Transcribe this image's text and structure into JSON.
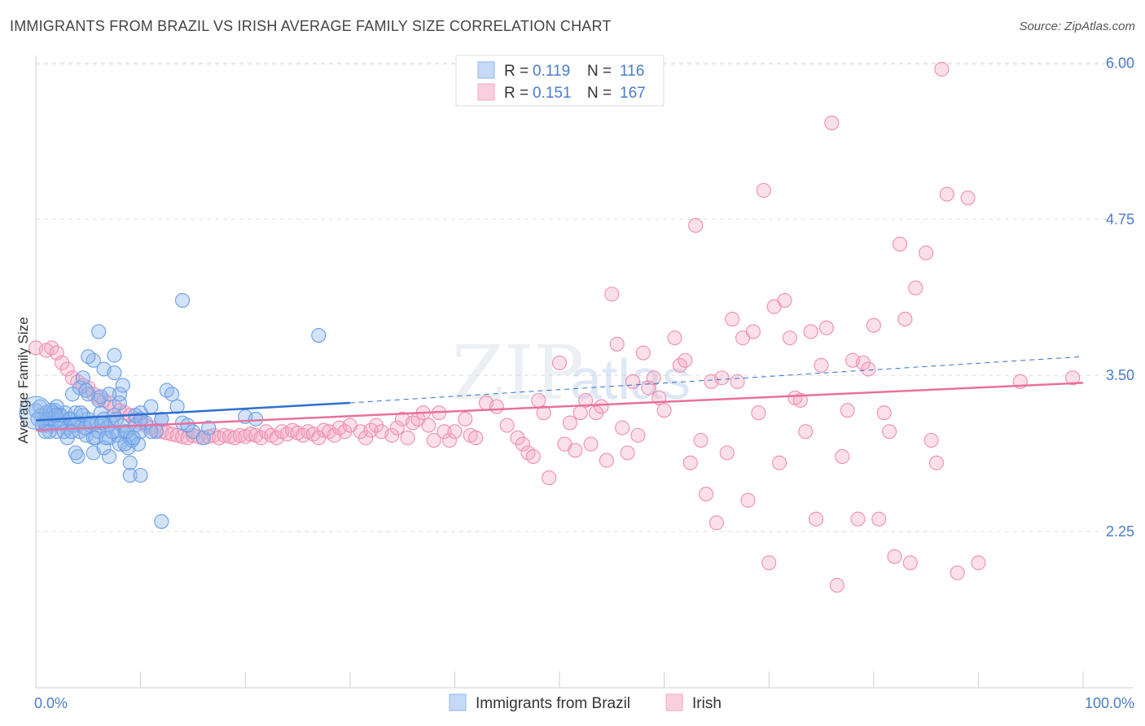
{
  "header": {
    "title": "IMMIGRANTS FROM BRAZIL VS IRISH AVERAGE FAMILY SIZE CORRELATION CHART",
    "source": "Source: ZipAtlas.com"
  },
  "watermark": {
    "zip": "ZIP",
    "atlas": "atlas"
  },
  "legend": {
    "r_label": "R =",
    "n_label": "N =",
    "series": [
      {
        "name": "Immigrants from Brazil",
        "r": "0.119",
        "n": "116",
        "color": "#8fb6ea"
      },
      {
        "name": "Irish",
        "r": "0.151",
        "n": "167",
        "color": "#f4a6c0"
      }
    ]
  },
  "chart_data": {
    "type": "scatter",
    "title": "IMMIGRANTS FROM BRAZIL VS IRISH AVERAGE FAMILY SIZE CORRELATION CHART",
    "xlabel": "",
    "ylabel": "Average Family Size",
    "xlim": [
      0,
      100
    ],
    "ylim": [
      1.0,
      6.1
    ],
    "x_tick_labels": [
      "0.0%",
      "100.0%"
    ],
    "y_ticks": [
      2.25,
      3.5,
      4.75,
      6.0
    ],
    "y_tick_labels": [
      "2.25",
      "3.50",
      "4.75",
      "6.00"
    ],
    "colors": {
      "brazil": "#6a9ee6",
      "brazil_line": "#2f6fd0",
      "irish": "#f08db0",
      "irish_line": "#e8719c",
      "axis_text": "#4a7cc9"
    },
    "trendlines": [
      {
        "series": "Immigrants from Brazil",
        "x": [
          0,
          30
        ],
        "y": [
          3.14,
          3.28
        ],
        "dashed_to": [
          100,
          3.65
        ]
      },
      {
        "series": "Irish",
        "x": [
          0,
          100
        ],
        "y": [
          3.06,
          3.44
        ]
      }
    ],
    "series": [
      {
        "name": "Immigrants from Brazil",
        "points": [
          [
            0,
            3.22
          ],
          [
            0.5,
            3.18
          ],
          [
            0.8,
            3.12
          ],
          [
            1,
            3.2
          ],
          [
            1.2,
            3.15
          ],
          [
            1.5,
            3.1
          ],
          [
            1.8,
            3.22
          ],
          [
            2,
            3.05
          ],
          [
            2.2,
            3.18
          ],
          [
            2.5,
            3.12
          ],
          [
            2.8,
            3.2
          ],
          [
            3,
            3.08
          ],
          [
            3.2,
            3.15
          ],
          [
            3.5,
            3.1
          ],
          [
            3.8,
            3.2
          ],
          [
            4,
            3.12
          ],
          [
            4.2,
            3.05
          ],
          [
            4.5,
            3.18
          ],
          [
            4.8,
            3.02
          ],
          [
            5,
            3.15
          ],
          [
            5.2,
            3.1
          ],
          [
            5.5,
            3.0
          ],
          [
            5.8,
            3.12
          ],
          [
            6,
            3.05
          ],
          [
            6.2,
            3.2
          ],
          [
            6.5,
            3.15
          ],
          [
            6.8,
            3.08
          ],
          [
            7,
            3.0
          ],
          [
            7.2,
            3.12
          ],
          [
            7.5,
            3.18
          ],
          [
            7.8,
            3.02
          ],
          [
            8,
            2.95
          ],
          [
            8.2,
            3.1
          ],
          [
            8.5,
            3.05
          ],
          [
            8.8,
            2.92
          ],
          [
            9,
            3.0
          ],
          [
            9.2,
            2.98
          ],
          [
            9.5,
            3.1
          ],
          [
            9.8,
            2.95
          ],
          [
            10,
            3.05
          ],
          [
            1,
            3.1
          ],
          [
            2,
            3.25
          ],
          [
            3,
            3.0
          ],
          [
            4,
            2.85
          ],
          [
            5,
            3.35
          ],
          [
            6,
            3.3
          ],
          [
            7,
            2.85
          ],
          [
            8,
            3.28
          ],
          [
            9,
            2.8
          ],
          [
            10,
            3.2
          ],
          [
            3.5,
            3.35
          ],
          [
            4.5,
            3.48
          ],
          [
            5.5,
            3.62
          ],
          [
            6.5,
            3.55
          ],
          [
            7.5,
            3.52
          ],
          [
            8,
            3.35
          ],
          [
            7,
            3.35
          ],
          [
            5,
            3.65
          ],
          [
            6,
            3.85
          ],
          [
            7.5,
            3.66
          ],
          [
            4.2,
            3.4
          ],
          [
            4.8,
            3.38
          ],
          [
            6.2,
            3.33
          ],
          [
            8.3,
            3.42
          ],
          [
            9,
            2.7
          ],
          [
            10,
            2.7
          ],
          [
            3.8,
            2.88
          ],
          [
            5.5,
            2.88
          ],
          [
            6.5,
            2.92
          ],
          [
            8.5,
            2.95
          ],
          [
            11,
            3.25
          ],
          [
            12,
            3.15
          ],
          [
            12.5,
            3.38
          ],
          [
            13,
            3.35
          ],
          [
            13.5,
            3.25
          ],
          [
            14,
            3.12
          ],
          [
            15,
            3.05
          ],
          [
            16,
            3.0
          ],
          [
            11.5,
            3.05
          ],
          [
            12,
            3.15
          ],
          [
            14.5,
            3.1
          ],
          [
            9.5,
            3.18
          ],
          [
            10.5,
            3.12
          ],
          [
            10,
            3.15
          ],
          [
            11,
            3.05
          ],
          [
            14,
            4.1
          ],
          [
            27,
            3.82
          ],
          [
            20,
            3.17
          ],
          [
            21,
            3.15
          ],
          [
            16.5,
            3.08
          ],
          [
            12,
            2.33
          ],
          [
            0.2,
            3.15
          ],
          [
            0.6,
            3.1
          ],
          [
            1.3,
            3.05
          ],
          [
            1.7,
            3.2
          ],
          [
            2.3,
            3.12
          ],
          [
            2.7,
            3.05
          ],
          [
            3.3,
            3.15
          ],
          [
            3.7,
            3.1
          ],
          [
            4.3,
            3.2
          ],
          [
            4.7,
            3.08
          ],
          [
            5.3,
            3.12
          ],
          [
            5.7,
            3.0
          ],
          [
            6.3,
            3.12
          ],
          [
            6.7,
            3.0
          ],
          [
            7.3,
            3.05
          ],
          [
            7.7,
            3.15
          ],
          [
            8.7,
            3.05
          ],
          [
            9.3,
            3.0
          ],
          [
            0.4,
            3.25
          ],
          [
            1.4,
            3.22
          ],
          [
            2.4,
            3.18
          ],
          [
            3.4,
            3.05
          ],
          [
            0.9,
            3.05
          ],
          [
            1.9,
            3.18
          ]
        ]
      },
      {
        "name": "Irish",
        "points": [
          [
            0,
            3.72
          ],
          [
            1,
            3.7
          ],
          [
            1.5,
            3.72
          ],
          [
            2,
            3.68
          ],
          [
            2.5,
            3.6
          ],
          [
            3,
            3.55
          ],
          [
            3.5,
            3.48
          ],
          [
            4,
            3.45
          ],
          [
            4.5,
            3.42
          ],
          [
            5,
            3.4
          ],
          [
            5.5,
            3.35
          ],
          [
            6,
            3.32
          ],
          [
            6.5,
            3.3
          ],
          [
            7,
            3.28
          ],
          [
            7.5,
            3.25
          ],
          [
            8,
            3.22
          ],
          [
            8.5,
            3.2
          ],
          [
            9,
            3.18
          ],
          [
            9.5,
            3.15
          ],
          [
            10,
            3.12
          ],
          [
            10.5,
            3.1
          ],
          [
            11,
            3.08
          ],
          [
            11.5,
            3.06
          ],
          [
            12,
            3.05
          ],
          [
            12.5,
            3.04
          ],
          [
            13,
            3.03
          ],
          [
            13.5,
            3.02
          ],
          [
            14,
            3.01
          ],
          [
            14.5,
            3.0
          ],
          [
            15,
            3.02
          ],
          [
            15.5,
            3.01
          ],
          [
            16,
            3.0
          ],
          [
            16.5,
            3.01
          ],
          [
            17,
            3.02
          ],
          [
            17.5,
            3.0
          ],
          [
            18,
            3.02
          ],
          [
            18.5,
            3.01
          ],
          [
            19,
            3.0
          ],
          [
            19.5,
            3.02
          ],
          [
            20,
            3.01
          ],
          [
            20.5,
            3.03
          ],
          [
            21,
            3.02
          ],
          [
            21.5,
            3.0
          ],
          [
            22,
            3.05
          ],
          [
            22.5,
            3.02
          ],
          [
            23,
            3.0
          ],
          [
            23.5,
            3.05
          ],
          [
            24,
            3.03
          ],
          [
            24.5,
            3.06
          ],
          [
            25,
            3.04
          ],
          [
            25.5,
            3.02
          ],
          [
            26,
            3.05
          ],
          [
            26.5,
            3.03
          ],
          [
            27,
            3.0
          ],
          [
            27.5,
            3.06
          ],
          [
            28,
            3.05
          ],
          [
            28.5,
            3.02
          ],
          [
            29,
            3.08
          ],
          [
            29.5,
            3.05
          ],
          [
            30,
            3.1
          ],
          [
            31,
            3.05
          ],
          [
            31.5,
            3.0
          ],
          [
            32,
            3.06
          ],
          [
            32.5,
            3.1
          ],
          [
            33,
            3.05
          ],
          [
            34,
            3.02
          ],
          [
            34.5,
            3.08
          ],
          [
            35,
            3.15
          ],
          [
            35.5,
            3.0
          ],
          [
            36,
            3.12
          ],
          [
            36.5,
            3.15
          ],
          [
            37,
            3.2
          ],
          [
            37.5,
            3.1
          ],
          [
            38,
            2.98
          ],
          [
            38.5,
            3.2
          ],
          [
            39,
            3.05
          ],
          [
            39.5,
            2.98
          ],
          [
            40,
            3.05
          ],
          [
            41,
            3.15
          ],
          [
            41.5,
            3.02
          ],
          [
            42,
            3.0
          ],
          [
            43,
            3.28
          ],
          [
            44,
            3.25
          ],
          [
            45,
            3.1
          ],
          [
            46,
            3.0
          ],
          [
            46.5,
            2.95
          ],
          [
            47,
            2.88
          ],
          [
            47.5,
            2.85
          ],
          [
            48,
            3.3
          ],
          [
            48.5,
            3.2
          ],
          [
            49,
            2.68
          ],
          [
            50,
            3.6
          ],
          [
            50.5,
            2.95
          ],
          [
            51,
            3.12
          ],
          [
            51.5,
            2.9
          ],
          [
            52,
            3.2
          ],
          [
            52.5,
            3.3
          ],
          [
            53,
            2.95
          ],
          [
            53.5,
            3.2
          ],
          [
            54,
            3.25
          ],
          [
            54.5,
            2.82
          ],
          [
            55,
            4.15
          ],
          [
            55.5,
            3.75
          ],
          [
            56,
            3.08
          ],
          [
            56.5,
            2.88
          ],
          [
            57,
            3.45
          ],
          [
            57.5,
            3.02
          ],
          [
            58,
            3.68
          ],
          [
            58.5,
            3.4
          ],
          [
            59,
            3.48
          ],
          [
            59.5,
            3.32
          ],
          [
            60,
            3.22
          ],
          [
            61,
            3.8
          ],
          [
            61.5,
            3.58
          ],
          [
            62,
            3.62
          ],
          [
            62.5,
            2.8
          ],
          [
            63,
            4.7
          ],
          [
            63.5,
            2.98
          ],
          [
            64,
            2.55
          ],
          [
            64.5,
            3.45
          ],
          [
            65,
            2.32
          ],
          [
            65.5,
            3.48
          ],
          [
            66,
            2.88
          ],
          [
            66.5,
            3.95
          ],
          [
            67,
            3.45
          ],
          [
            67.5,
            3.8
          ],
          [
            68,
            2.5
          ],
          [
            68.5,
            3.85
          ],
          [
            69,
            3.2
          ],
          [
            69.5,
            4.98
          ],
          [
            70,
            2.0
          ],
          [
            70.5,
            4.05
          ],
          [
            71,
            2.8
          ],
          [
            71.5,
            4.1
          ],
          [
            72,
            3.8
          ],
          [
            72.5,
            3.32
          ],
          [
            73,
            3.3
          ],
          [
            73.5,
            3.05
          ],
          [
            74,
            3.85
          ],
          [
            74.5,
            2.35
          ],
          [
            75,
            3.58
          ],
          [
            75.5,
            3.88
          ],
          [
            76,
            5.52
          ],
          [
            76.5,
            1.82
          ],
          [
            77,
            2.85
          ],
          [
            77.5,
            3.22
          ],
          [
            78,
            3.62
          ],
          [
            78.5,
            2.35
          ],
          [
            79,
            3.6
          ],
          [
            79.5,
            3.55
          ],
          [
            80,
            3.9
          ],
          [
            80.5,
            2.35
          ],
          [
            81,
            3.2
          ],
          [
            81.5,
            3.05
          ],
          [
            82,
            2.05
          ],
          [
            82.5,
            4.55
          ],
          [
            83,
            3.95
          ],
          [
            83.5,
            2.0
          ],
          [
            84,
            4.2
          ],
          [
            85,
            4.48
          ],
          [
            85.5,
            2.98
          ],
          [
            86,
            2.8
          ],
          [
            86.5,
            5.95
          ],
          [
            87,
            4.95
          ],
          [
            88,
            1.92
          ],
          [
            89,
            4.92
          ],
          [
            90,
            2.0
          ],
          [
            94,
            3.45
          ],
          [
            99,
            3.48
          ]
        ]
      }
    ]
  }
}
